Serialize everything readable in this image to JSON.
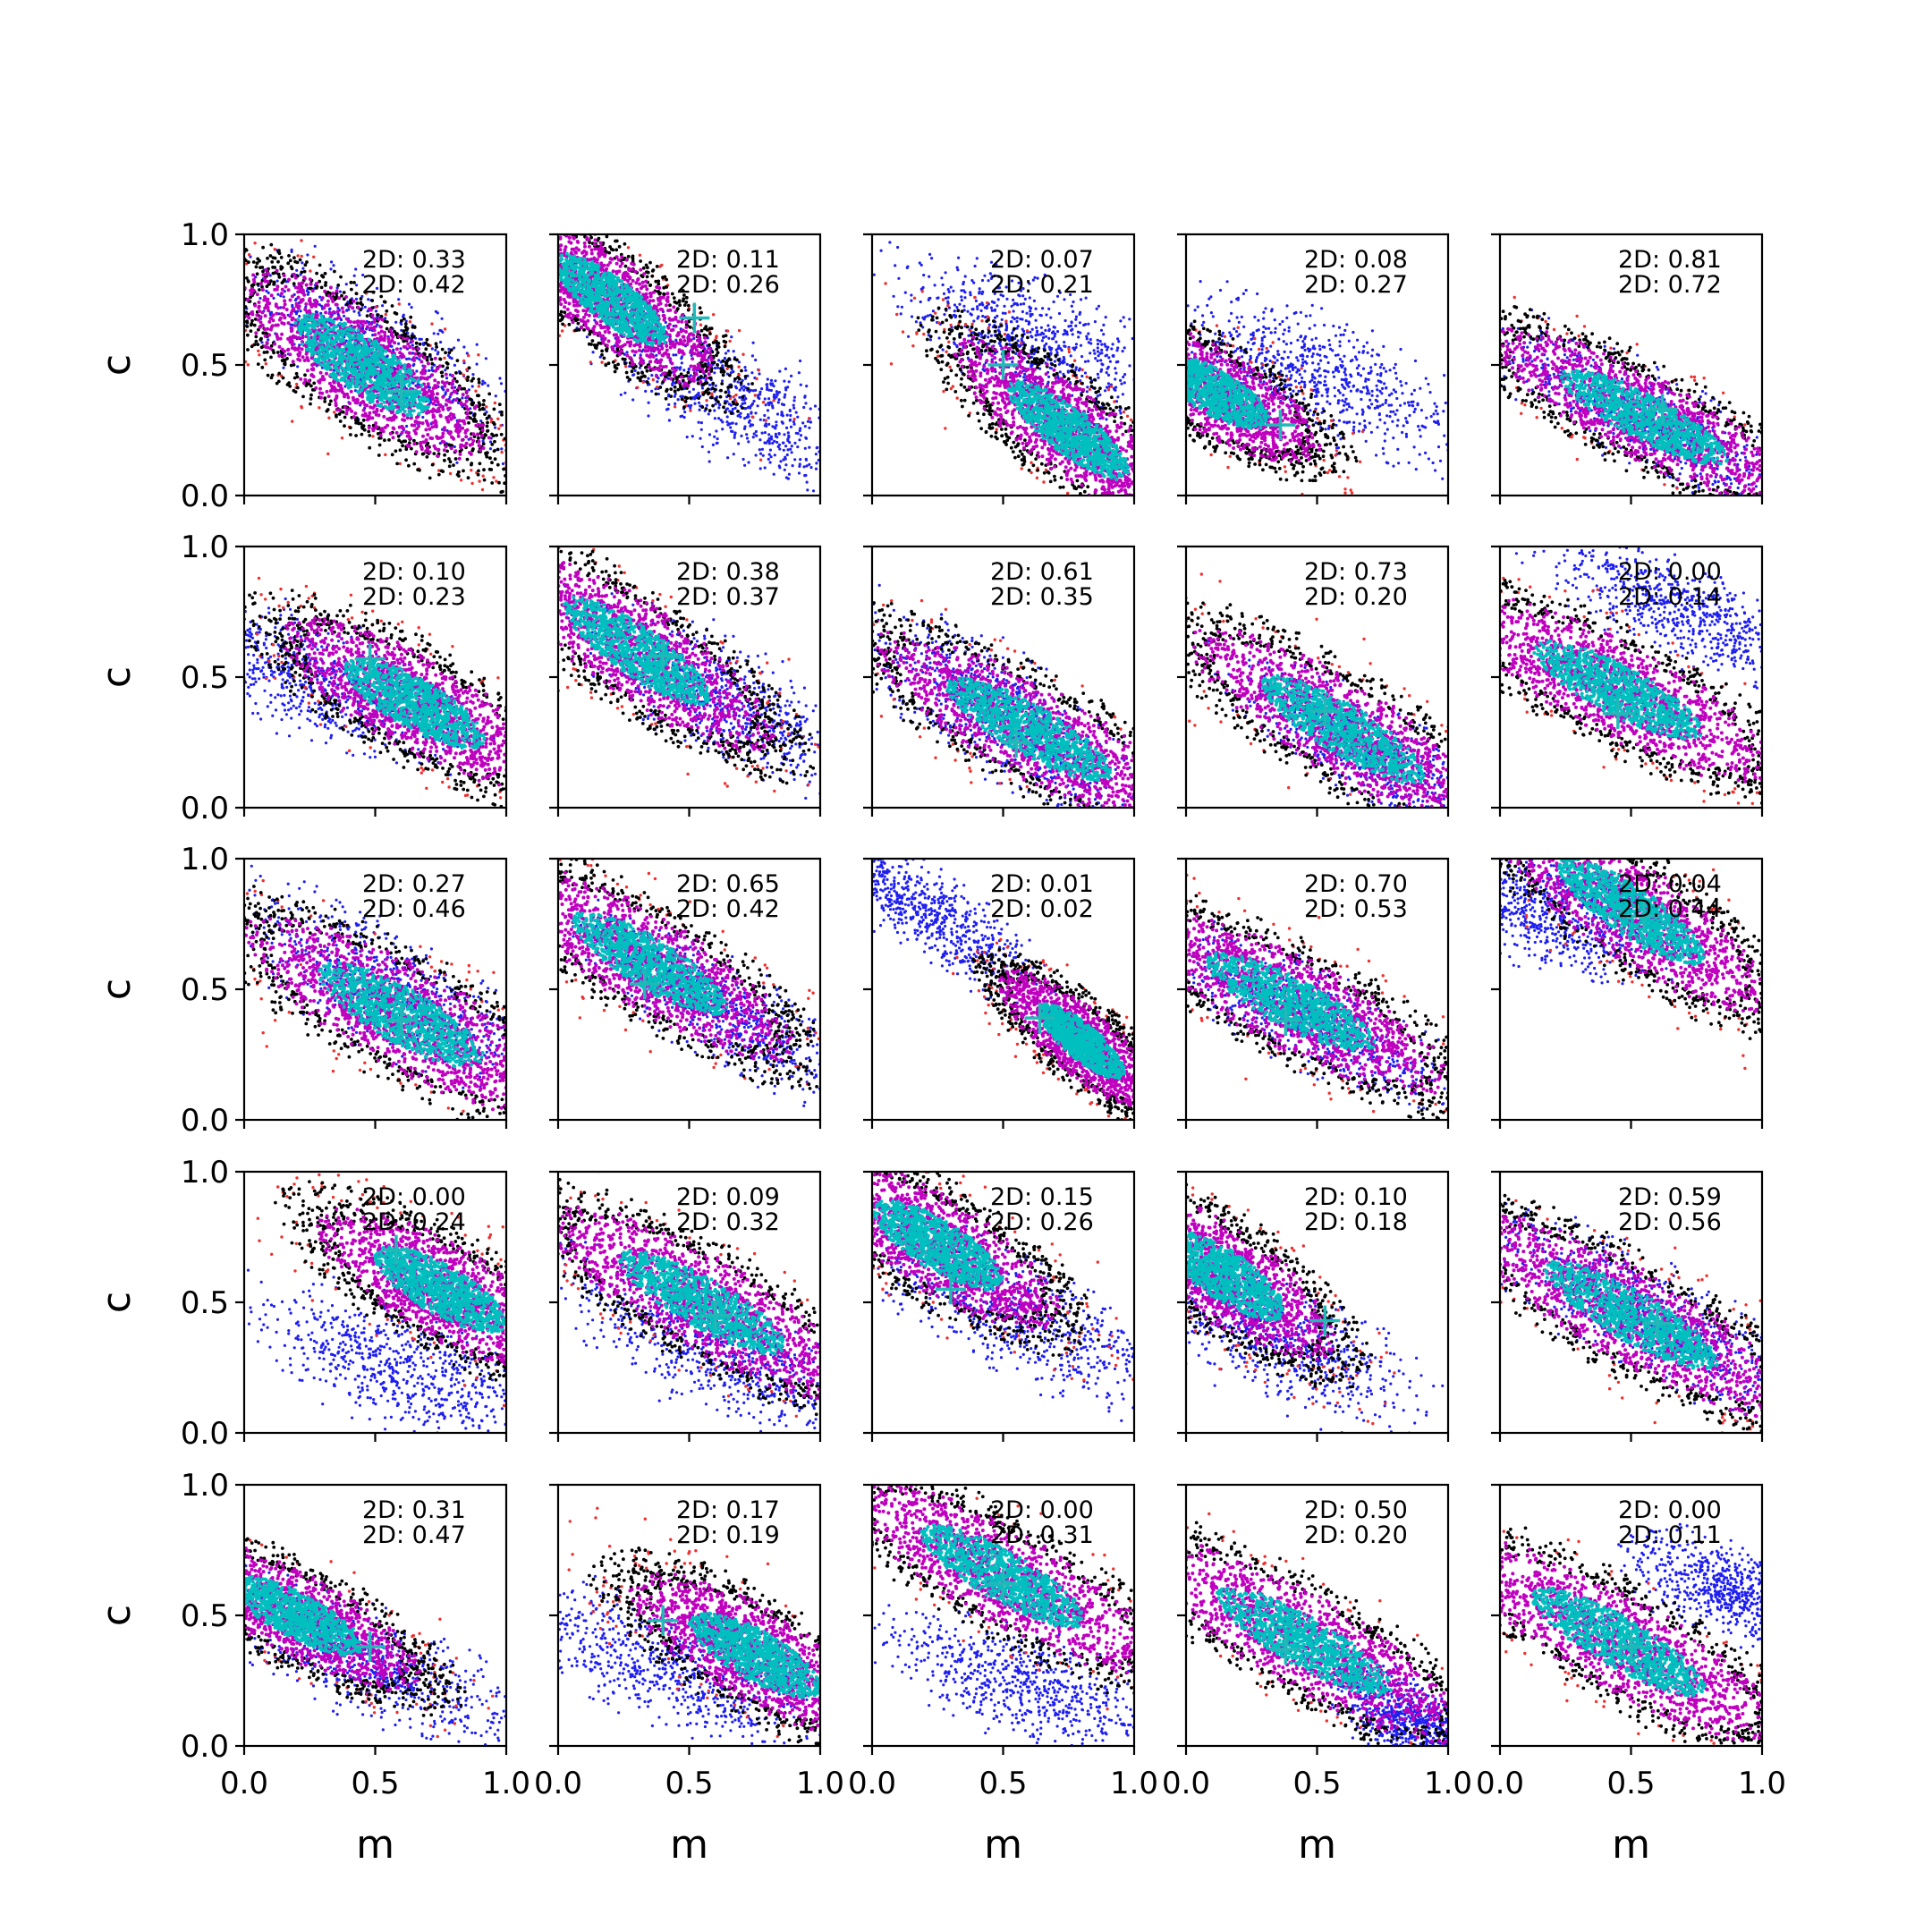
{
  "chart_data": {
    "type": "scatter",
    "layout": "5x5 grid of panels",
    "xlabel": "m",
    "ylabel": "c",
    "xlim": [
      0,
      1
    ],
    "ylim": [
      0,
      1
    ],
    "xticks": [
      "0.0",
      "0.5",
      "1.0"
    ],
    "yticks": [
      "0.0",
      "0.5",
      "1.0"
    ],
    "grid": false,
    "colors": {
      "blue": "#1f1fef",
      "red": "#ef2f2f",
      "black": "#000000",
      "magenta": "#bf00bf",
      "cyan": "#00bfbf",
      "marker": "#22b8b8"
    },
    "panels": [
      {
        "stat1": "2D: 0.33",
        "stat2": "2D: 0.42",
        "main": {
          "cx": 0.45,
          "cy": 0.5,
          "sx": 0.32,
          "sy": 0.11,
          "angle": -35
        },
        "blue": {
          "cx": 0.5,
          "cy": 0.55,
          "sx": 0.3,
          "sy": 0.1,
          "angle": -33
        },
        "marker": [
          0.6,
          0.4
        ]
      },
      {
        "stat1": "2D: 0.11",
        "stat2": "2D: 0.26",
        "main": {
          "cx": 0.2,
          "cy": 0.75,
          "sx": 0.28,
          "sy": 0.09,
          "angle": -38
        },
        "blue": {
          "cx": 0.7,
          "cy": 0.35,
          "sx": 0.3,
          "sy": 0.1,
          "angle": -30
        },
        "marker": [
          0.52,
          0.68
        ]
      },
      {
        "stat1": "2D: 0.07",
        "stat2": "2D: 0.21",
        "main": {
          "cx": 0.75,
          "cy": 0.25,
          "sx": 0.3,
          "sy": 0.09,
          "angle": -38
        },
        "blue": {
          "cx": 0.6,
          "cy": 0.6,
          "sx": 0.28,
          "sy": 0.1,
          "angle": -25
        },
        "marker": [
          0.5,
          0.5
        ]
      },
      {
        "stat1": "2D: 0.08",
        "stat2": "2D: 0.27",
        "main": {
          "cx": 0.1,
          "cy": 0.4,
          "sx": 0.26,
          "sy": 0.09,
          "angle": -30
        },
        "blue": {
          "cx": 0.5,
          "cy": 0.45,
          "sx": 0.3,
          "sy": 0.1,
          "angle": -25
        },
        "marker": [
          0.36,
          0.27
        ]
      },
      {
        "stat1": "2D: 0.81",
        "stat2": "2D: 0.72",
        "main": {
          "cx": 0.55,
          "cy": 0.3,
          "sx": 0.38,
          "sy": 0.09,
          "angle": -28
        },
        "blue": {
          "cx": 0.55,
          "cy": 0.3,
          "sx": 0.35,
          "sy": 0.08,
          "angle": -28
        },
        "marker": [
          0.62,
          0.33
        ]
      },
      {
        "stat1": "2D: 0.10",
        "stat2": "2D: 0.23",
        "main": {
          "cx": 0.65,
          "cy": 0.4,
          "sx": 0.32,
          "sy": 0.1,
          "angle": -30
        },
        "blue": {
          "cx": 0.25,
          "cy": 0.5,
          "sx": 0.3,
          "sy": 0.1,
          "angle": -22
        },
        "marker": [
          0.48,
          0.57
        ]
      },
      {
        "stat1": "2D: 0.38",
        "stat2": "2D: 0.37",
        "main": {
          "cx": 0.3,
          "cy": 0.6,
          "sx": 0.35,
          "sy": 0.1,
          "angle": -35
        },
        "blue": {
          "cx": 0.65,
          "cy": 0.4,
          "sx": 0.32,
          "sy": 0.1,
          "angle": -30
        },
        "marker": [
          0.4,
          0.58
        ]
      },
      {
        "stat1": "2D: 0.61",
        "stat2": "2D: 0.35",
        "main": {
          "cx": 0.6,
          "cy": 0.3,
          "sx": 0.38,
          "sy": 0.1,
          "angle": -30
        },
        "blue": {
          "cx": 0.5,
          "cy": 0.35,
          "sx": 0.32,
          "sy": 0.1,
          "angle": -35
        },
        "marker": [
          0.55,
          0.25
        ]
      },
      {
        "stat1": "2D: 0.73",
        "stat2": "2D: 0.20",
        "main": {
          "cx": 0.6,
          "cy": 0.3,
          "sx": 0.38,
          "sy": 0.1,
          "angle": -32
        },
        "blue": {
          "cx": 0.7,
          "cy": 0.2,
          "sx": 0.3,
          "sy": 0.08,
          "angle": -32
        },
        "marker": [
          0.53,
          0.37
        ]
      },
      {
        "stat1": "2D: 0.00",
        "stat2": "2D: 0.14",
        "main": {
          "cx": 0.45,
          "cy": 0.45,
          "sx": 0.38,
          "sy": 0.1,
          "angle": -28
        },
        "blue": {
          "cx": 0.7,
          "cy": 0.75,
          "sx": 0.28,
          "sy": 0.08,
          "angle": -25
        },
        "marker": [
          0.45,
          0.36
        ]
      },
      {
        "stat1": "2D: 0.27",
        "stat2": "2D: 0.46",
        "main": {
          "cx": 0.6,
          "cy": 0.4,
          "sx": 0.38,
          "sy": 0.11,
          "angle": -30
        },
        "blue": {
          "cx": 0.55,
          "cy": 0.5,
          "sx": 0.35,
          "sy": 0.1,
          "angle": -28
        },
        "marker": [
          0.6,
          0.38
        ]
      },
      {
        "stat1": "2D: 0.65",
        "stat2": "2D: 0.42",
        "main": {
          "cx": 0.35,
          "cy": 0.6,
          "sx": 0.36,
          "sy": 0.1,
          "angle": -32
        },
        "blue": {
          "cx": 0.65,
          "cy": 0.4,
          "sx": 0.3,
          "sy": 0.08,
          "angle": -32
        },
        "marker": [
          0.33,
          0.52
        ]
      },
      {
        "stat1": "2D: 0.01",
        "stat2": "2D: 0.02",
        "main": {
          "cx": 0.8,
          "cy": 0.3,
          "sx": 0.22,
          "sy": 0.07,
          "angle": -40
        },
        "blue": {
          "cx": 0.2,
          "cy": 0.8,
          "sx": 0.25,
          "sy": 0.07,
          "angle": -35
        },
        "marker": [
          0.64,
          0.39
        ]
      },
      {
        "stat1": "2D: 0.70",
        "stat2": "2D: 0.53",
        "main": {
          "cx": 0.4,
          "cy": 0.45,
          "sx": 0.38,
          "sy": 0.1,
          "angle": -28
        },
        "blue": {
          "cx": 0.45,
          "cy": 0.4,
          "sx": 0.3,
          "sy": 0.08,
          "angle": -28
        },
        "marker": [
          0.38,
          0.38
        ]
      },
      {
        "stat1": "2D: 0.04",
        "stat2": "2D: 0.44",
        "main": {
          "cx": 0.5,
          "cy": 0.8,
          "sx": 0.35,
          "sy": 0.1,
          "angle": -35
        },
        "blue": {
          "cx": 0.2,
          "cy": 0.8,
          "sx": 0.22,
          "sy": 0.1,
          "angle": -20
        },
        "marker": [
          0.55,
          0.78
        ]
      },
      {
        "stat1": "2D: 0.00",
        "stat2": "2D: 0.24",
        "main": {
          "cx": 0.75,
          "cy": 0.55,
          "sx": 0.3,
          "sy": 0.1,
          "angle": -30
        },
        "blue": {
          "cx": 0.6,
          "cy": 0.25,
          "sx": 0.32,
          "sy": 0.1,
          "angle": -22
        },
        "marker": [
          0.58,
          0.7
        ]
      },
      {
        "stat1": "2D: 0.09",
        "stat2": "2D: 0.32",
        "main": {
          "cx": 0.55,
          "cy": 0.5,
          "sx": 0.38,
          "sy": 0.1,
          "angle": -30
        },
        "blue": {
          "cx": 0.6,
          "cy": 0.3,
          "sx": 0.35,
          "sy": 0.1,
          "angle": -25
        },
        "marker": [
          0.6,
          0.45
        ]
      },
      {
        "stat1": "2D: 0.15",
        "stat2": "2D: 0.26",
        "main": {
          "cx": 0.25,
          "cy": 0.72,
          "sx": 0.3,
          "sy": 0.1,
          "angle": -32
        },
        "blue": {
          "cx": 0.55,
          "cy": 0.45,
          "sx": 0.35,
          "sy": 0.1,
          "angle": -25
        },
        "marker": [
          0.3,
          0.55
        ]
      },
      {
        "stat1": "2D: 0.10",
        "stat2": "2D: 0.18",
        "main": {
          "cx": 0.15,
          "cy": 0.6,
          "sx": 0.28,
          "sy": 0.1,
          "angle": -35
        },
        "blue": {
          "cx": 0.35,
          "cy": 0.35,
          "sx": 0.28,
          "sy": 0.1,
          "angle": -25
        },
        "marker": [
          0.53,
          0.43
        ]
      },
      {
        "stat1": "2D: 0.59",
        "stat2": "2D: 0.56",
        "main": {
          "cx": 0.5,
          "cy": 0.45,
          "sx": 0.4,
          "sy": 0.1,
          "angle": -30
        },
        "blue": {
          "cx": 0.55,
          "cy": 0.45,
          "sx": 0.35,
          "sy": 0.09,
          "angle": -28
        },
        "marker": [
          0.6,
          0.42
        ]
      },
      {
        "stat1": "2D: 0.31",
        "stat2": "2D: 0.47",
        "main": {
          "cx": 0.2,
          "cy": 0.5,
          "sx": 0.3,
          "sy": 0.09,
          "angle": -28
        },
        "blue": {
          "cx": 0.5,
          "cy": 0.3,
          "sx": 0.3,
          "sy": 0.09,
          "angle": -25
        },
        "marker": [
          0.48,
          0.38
        ]
      },
      {
        "stat1": "2D: 0.17",
        "stat2": "2D: 0.19",
        "main": {
          "cx": 0.75,
          "cy": 0.35,
          "sx": 0.3,
          "sy": 0.1,
          "angle": -30
        },
        "blue": {
          "cx": 0.4,
          "cy": 0.3,
          "sx": 0.32,
          "sy": 0.1,
          "angle": -25
        },
        "marker": [
          0.4,
          0.48
        ]
      },
      {
        "stat1": "2D: 0.00",
        "stat2": "2D: 0.31",
        "main": {
          "cx": 0.5,
          "cy": 0.65,
          "sx": 0.38,
          "sy": 0.1,
          "angle": -30
        },
        "blue": {
          "cx": 0.6,
          "cy": 0.22,
          "sx": 0.3,
          "sy": 0.09,
          "angle": -20
        },
        "marker": [
          0.5,
          0.62
        ]
      },
      {
        "stat1": "2D: 0.50",
        "stat2": "2D: 0.20",
        "main": {
          "cx": 0.45,
          "cy": 0.4,
          "sx": 0.4,
          "sy": 0.1,
          "angle": -30
        },
        "blue": {
          "cx": 0.85,
          "cy": 0.1,
          "sx": 0.15,
          "sy": 0.07,
          "angle": -30
        },
        "marker": [
          0.38,
          0.37
        ]
      },
      {
        "stat1": "2D: 0.00",
        "stat2": "2D: 0.11",
        "main": {
          "cx": 0.45,
          "cy": 0.4,
          "sx": 0.4,
          "sy": 0.1,
          "angle": -30
        },
        "blue": {
          "cx": 0.88,
          "cy": 0.6,
          "sx": 0.2,
          "sy": 0.08,
          "angle": -20
        },
        "marker": [
          0.5,
          0.38
        ]
      }
    ]
  }
}
